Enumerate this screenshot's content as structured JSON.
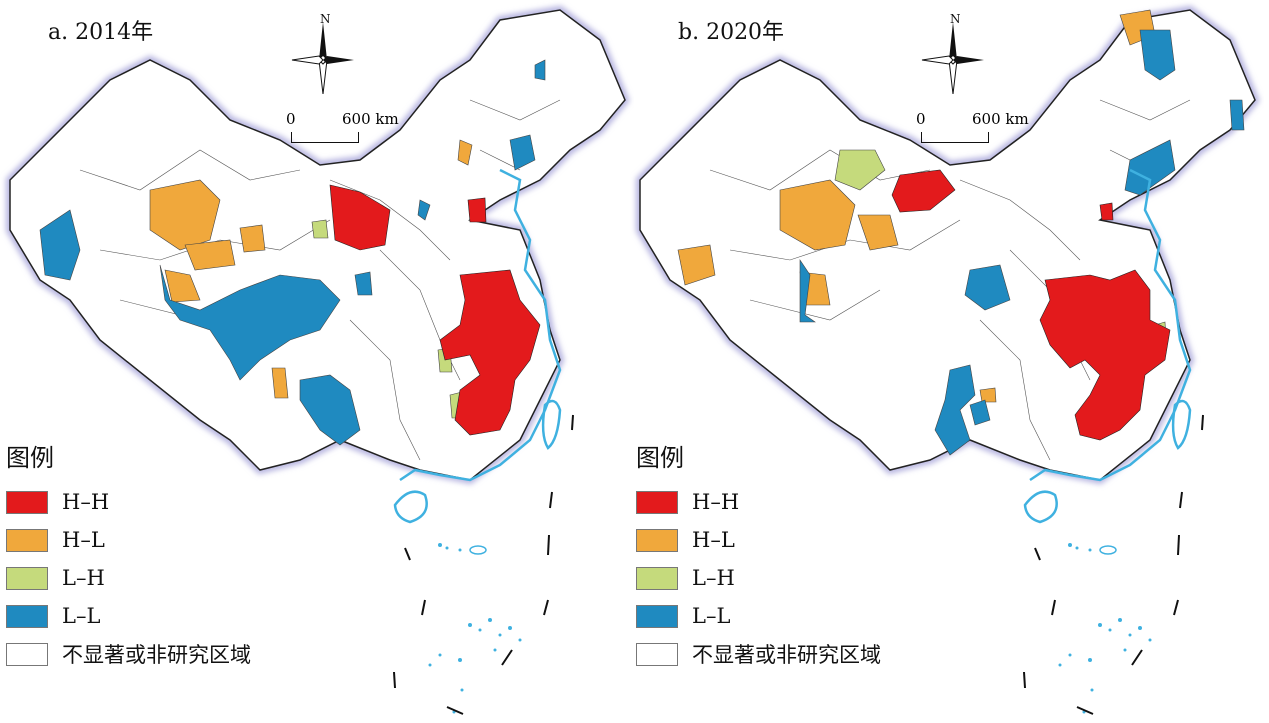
{
  "panels": [
    {
      "title": "a. 2014年",
      "north": "N",
      "scale": {
        "start": "0",
        "end": "600 km"
      }
    },
    {
      "title": "b. 2020年",
      "north": "N",
      "scale": {
        "start": "0",
        "end": "600 km"
      }
    }
  ],
  "legend": {
    "title": "图例",
    "items": [
      {
        "label": "H–H",
        "color": "#e31a1c"
      },
      {
        "label": "H–L",
        "color": "#f0a83c"
      },
      {
        "label": "L–H",
        "color": "#c5da7c"
      },
      {
        "label": "L–L",
        "color": "#1f8ac0"
      },
      {
        "label": "不显著或非研究区域",
        "color": "#ffffff"
      }
    ]
  },
  "colors": {
    "coast": "#3fb1e0",
    "border_glow": "#b8b8d8",
    "outline": "#222222"
  }
}
